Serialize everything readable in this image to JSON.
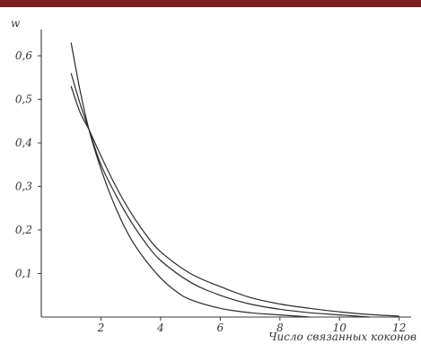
{
  "header_bar_color": "#7a2022",
  "chart_data": {
    "type": "line",
    "xlabel": "Число связанных коконов",
    "ylabel": "w",
    "xlim": [
      0,
      12.4
    ],
    "ylim": [
      0,
      0.66
    ],
    "xticks": [
      2,
      4,
      6,
      8,
      10,
      12
    ],
    "xtick_labels": [
      "2",
      "4",
      "6",
      "8",
      "10",
      "12"
    ],
    "yticks": [
      0.1,
      0.2,
      0.3,
      0.4,
      0.5,
      0.6
    ],
    "ytick_labels": [
      "0,1",
      "0,2",
      "0,3",
      "0,4",
      "0,5",
      "0,6"
    ],
    "series": [
      {
        "x": [
          1.0,
          1.3,
          1.6,
          2.0,
          2.5,
          3.0,
          3.5,
          4.0,
          4.5,
          5.0,
          6.0,
          7.0,
          8.0,
          9.0
        ],
        "values": [
          0.63,
          0.52,
          0.43,
          0.34,
          0.25,
          0.18,
          0.13,
          0.09,
          0.06,
          0.04,
          0.02,
          0.01,
          0.005,
          0.0
        ]
      },
      {
        "x": [
          1.0,
          1.3,
          1.6,
          2.0,
          2.5,
          3.0,
          3.5,
          4.0,
          5.0,
          6.0,
          7.0,
          8.0,
          9.0,
          10.0,
          11.0
        ],
        "values": [
          0.56,
          0.49,
          0.43,
          0.35,
          0.28,
          0.22,
          0.17,
          0.13,
          0.08,
          0.05,
          0.03,
          0.018,
          0.01,
          0.005,
          0.0
        ]
      },
      {
        "x": [
          1.0,
          1.3,
          1.6,
          2.0,
          2.5,
          3.0,
          3.5,
          4.0,
          5.0,
          6.0,
          7.0,
          8.0,
          9.0,
          10.0,
          11.0,
          12.0
        ],
        "values": [
          0.53,
          0.47,
          0.43,
          0.37,
          0.3,
          0.24,
          0.19,
          0.15,
          0.1,
          0.07,
          0.045,
          0.03,
          0.02,
          0.012,
          0.006,
          0.002
        ]
      }
    ]
  }
}
